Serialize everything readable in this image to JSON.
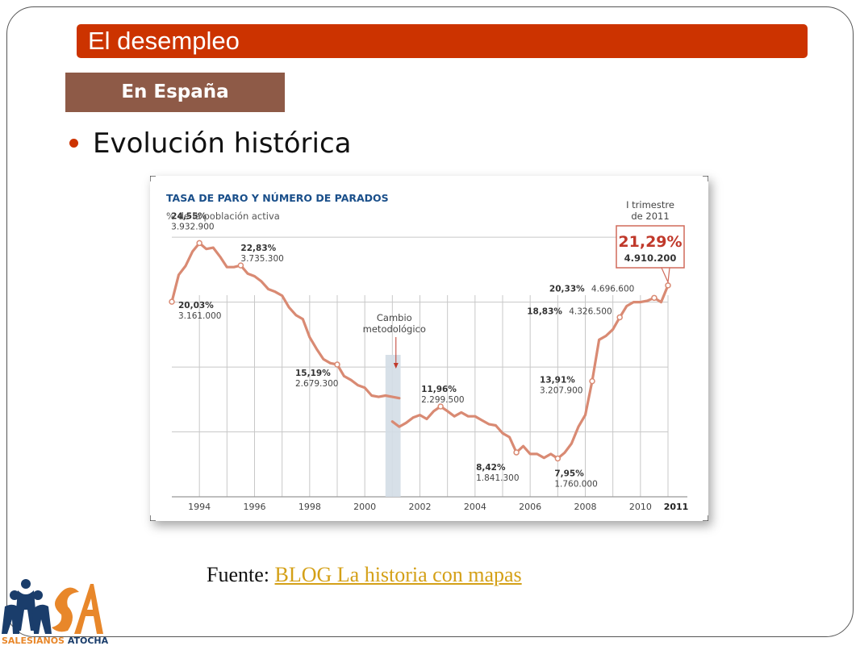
{
  "header": {
    "title": "El desempleo",
    "subtitle": "En España"
  },
  "bullet": {
    "text": "Evolución histórica"
  },
  "source": {
    "label": "Fuente:",
    "link_text": "BLOG La historia con mapas"
  },
  "logo": {
    "text_a": "SALESIANOS",
    "text_b": "ATOCHA"
  },
  "colors": {
    "accent": "#cc3300",
    "subtitle_bg": "#8e5a47",
    "line": "#d98a73",
    "chart_title": "#1a4f8a"
  },
  "chart_data": {
    "type": "line",
    "title": "TASA DE PARO Y NÚMERO DE PARADOS",
    "subtitle": "% de la población activa",
    "x_ticks": [
      "1994",
      "1996",
      "1998",
      "2000",
      "2002",
      "2004",
      "2006",
      "2008",
      "2010",
      "2011"
    ],
    "ylim": [
      5,
      27
    ],
    "grid": true,
    "series": [
      {
        "x": [
          1993.0,
          1993.25,
          1993.5,
          1993.75,
          1994.0,
          1994.25,
          1994.5,
          1994.75,
          1995.0,
          1995.25,
          1995.5,
          1995.75,
          1996.0,
          1996.25,
          1996.5,
          1996.75,
          1997.0,
          1997.25,
          1997.5,
          1997.75,
          1998.0,
          1998.25,
          1998.5,
          1998.75,
          1999.0,
          1999.25,
          1999.5,
          1999.75,
          2000.0,
          2000.25,
          2000.5,
          2000.75,
          2001.0,
          2001.25
        ],
        "y": [
          20.03,
          22.1,
          22.8,
          23.9,
          24.55,
          24.1,
          24.2,
          23.5,
          22.7,
          22.7,
          22.83,
          22.2,
          22.0,
          21.6,
          21.0,
          20.8,
          20.5,
          19.6,
          19.0,
          18.7,
          17.3,
          16.4,
          15.6,
          15.3,
          15.19,
          14.3,
          14.0,
          13.6,
          13.4,
          12.8,
          12.7,
          12.8,
          12.7,
          12.6
        ]
      },
      {
        "x": [
          2001.0,
          2001.25,
          2001.5,
          2001.75,
          2002.0,
          2002.25,
          2002.5,
          2002.75,
          2003.0,
          2003.25,
          2003.5,
          2003.75,
          2004.0,
          2004.25,
          2004.5,
          2004.75,
          2005.0,
          2005.25,
          2005.5,
          2005.75,
          2006.0,
          2006.25,
          2006.5,
          2006.75,
          2007.0,
          2007.25,
          2007.5,
          2007.75,
          2008.0,
          2008.25,
          2008.5,
          2008.75,
          2009.0,
          2009.25,
          2009.5,
          2009.75,
          2010.0,
          2010.25,
          2010.5,
          2010.75,
          2011.0
        ],
        "y": [
          10.8,
          10.4,
          10.7,
          11.1,
          11.3,
          11.0,
          11.6,
          11.96,
          11.6,
          11.2,
          11.5,
          11.2,
          11.2,
          10.9,
          10.6,
          10.5,
          9.9,
          9.6,
          8.42,
          8.9,
          8.3,
          8.3,
          8.0,
          8.3,
          7.95,
          8.4,
          9.1,
          10.4,
          11.3,
          13.91,
          17.1,
          17.4,
          17.9,
          18.83,
          19.7,
          20.0,
          20.0,
          20.1,
          20.33,
          20.0,
          21.29
        ]
      }
    ],
    "annotations": [
      {
        "x": 1993.0,
        "y": 20.03,
        "pct": "20,03%",
        "count": "3.161.000"
      },
      {
        "x": 1994.0,
        "y": 24.55,
        "pct": "24,55%",
        "count": "3.932.900"
      },
      {
        "x": 1995.5,
        "y": 22.83,
        "pct": "22,83%",
        "count": "3.735.300"
      },
      {
        "x": 1999.0,
        "y": 15.19,
        "pct": "15,19%",
        "count": "2.679.300"
      },
      {
        "x": 2002.75,
        "y": 11.96,
        "pct": "11,96%",
        "count": "2.299.500"
      },
      {
        "x": 2005.5,
        "y": 8.42,
        "pct": "8,42%",
        "count": "1.841.300"
      },
      {
        "x": 2007.0,
        "y": 7.95,
        "pct": "7,95%",
        "count": "1.760.000"
      },
      {
        "x": 2008.25,
        "y": 13.91,
        "pct": "13,91%",
        "count": "3.207.900"
      },
      {
        "x": 2009.25,
        "y": 18.83,
        "pct": "18,83%",
        "count": "4.326.500"
      },
      {
        "x": 2010.5,
        "y": 20.33,
        "pct": "20,33%",
        "count": "4.696.600"
      },
      {
        "x": 2011.0,
        "y": 21.29,
        "pct": "21,29%",
        "count": "4.910.200"
      }
    ],
    "highlight": {
      "label_line1": "I trimestre",
      "label_line2": "de 2011",
      "pct": "21,29%",
      "count": "4.910.200"
    },
    "method_change": {
      "label_line1": "Cambio",
      "label_line2": "metodológico",
      "x_start": 2000.75,
      "x_end": 2001.3
    }
  }
}
